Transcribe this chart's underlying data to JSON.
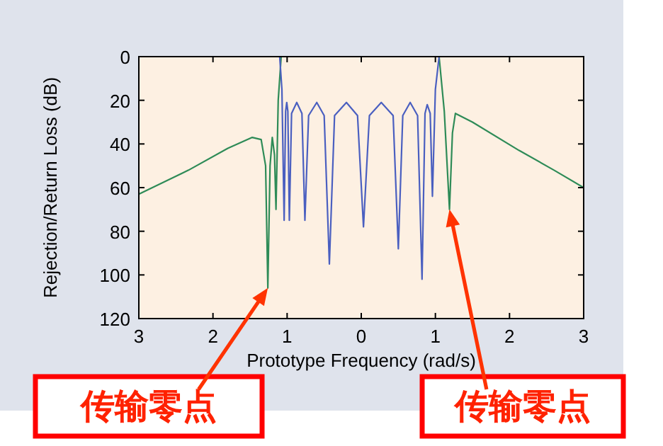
{
  "chart_data": {
    "type": "line",
    "xlabel": "Prototype Frequency (rad/s)",
    "ylabel": "Rejection/Return Loss (dB)",
    "xlim": [
      -3,
      3
    ],
    "ylim": [
      120,
      0
    ],
    "xticks": [
      {
        "value": -3,
        "label": "3"
      },
      {
        "value": -2,
        "label": "2"
      },
      {
        "value": -1,
        "label": "1"
      },
      {
        "value": 0,
        "label": "0"
      },
      {
        "value": 1,
        "label": "1"
      },
      {
        "value": 2,
        "label": "2"
      },
      {
        "value": 3,
        "label": "3"
      }
    ],
    "yticks": [
      0,
      20,
      40,
      60,
      80,
      100,
      120
    ],
    "series": [
      {
        "color": "#2e8b57",
        "x": [
          -3,
          -2.33,
          -1.8,
          -1.47,
          -1.35,
          -1.29,
          -1.26,
          -1.23,
          -1.2,
          -1.17,
          -1.15,
          -1.12,
          -1.08
        ],
        "values": [
          63,
          52,
          42,
          37,
          38,
          50,
          106,
          50,
          37,
          45,
          70,
          20,
          0
        ]
      },
      {
        "color": "#2e8b57",
        "x": [
          1.05,
          1.12,
          1.19,
          1.23,
          1.27,
          1.5,
          2.13,
          2.6,
          3
        ],
        "values": [
          0,
          25,
          70,
          35,
          26,
          30,
          43,
          52,
          60
        ]
      },
      {
        "color": "#4a5fc0",
        "x": [
          -1.1,
          -1.07,
          -1.04,
          -1.02,
          -1.005,
          -0.99,
          -0.97,
          -0.94,
          -0.87,
          -0.8,
          -0.76,
          -0.71,
          -0.6,
          -0.5,
          -0.43,
          -0.36,
          -0.2,
          -0.05,
          0.03,
          0.11,
          0.27,
          0.43,
          0.5,
          0.56,
          0.66,
          0.76,
          0.82,
          0.86,
          0.89,
          0.93,
          0.96,
          1.0,
          1.05
        ],
        "values": [
          0,
          15,
          75,
          25,
          21,
          25,
          75,
          26,
          21,
          26,
          75,
          27,
          21,
          27,
          95,
          27,
          21,
          27,
          78,
          27,
          21,
          27,
          88,
          27,
          21,
          27,
          102,
          26,
          22,
          26,
          64,
          15,
          0
        ]
      }
    ],
    "annotations": [
      "传输零点",
      "传输零点"
    ]
  }
}
